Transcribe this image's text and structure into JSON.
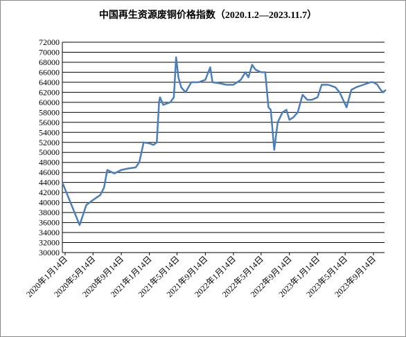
{
  "chart_data": {
    "type": "line",
    "title": "中国再生资源废铜价格指数（2020.1.2—2023.11.7）",
    "x": [
      "2020-01-02",
      "2020-03-17",
      "2020-04-15",
      "2020-05-14",
      "2020-06-15",
      "2020-07-01",
      "2020-07-15",
      "2020-08-15",
      "2020-09-14",
      "2020-10-15",
      "2020-11-15",
      "2020-12-01",
      "2020-12-20",
      "2021-01-14",
      "2021-02-01",
      "2021-02-15",
      "2021-02-25",
      "2021-03-01",
      "2021-03-15",
      "2021-04-14",
      "2021-04-30",
      "2021-05-10",
      "2021-05-20",
      "2021-06-01",
      "2021-06-20",
      "2021-07-15",
      "2021-08-15",
      "2021-09-14",
      "2021-10-05",
      "2021-10-15",
      "2021-11-15",
      "2021-12-15",
      "2022-01-14",
      "2022-02-15",
      "2022-03-07",
      "2022-03-20",
      "2022-04-05",
      "2022-04-20",
      "2022-05-14",
      "2022-06-01",
      "2022-06-15",
      "2022-06-25",
      "2022-07-10",
      "2022-07-25",
      "2022-08-15",
      "2022-09-01",
      "2022-09-14",
      "2022-10-01",
      "2022-10-20",
      "2022-11-10",
      "2022-12-01",
      "2022-12-20",
      "2023-01-14",
      "2023-02-01",
      "2023-03-01",
      "2023-04-01",
      "2023-04-20",
      "2023-05-20",
      "2023-06-10",
      "2023-07-01",
      "2023-08-01",
      "2023-09-01",
      "2023-09-14",
      "2023-10-01",
      "2023-10-15",
      "2023-10-25",
      "2023-11-07"
    ],
    "series": [
      {
        "name": "废铜价格指数",
        "color": "#4a7ebb",
        "values": [
          44000,
          35500,
          39500,
          40500,
          41500,
          43000,
          46500,
          45800,
          46500,
          46800,
          47000,
          48000,
          52000,
          51800,
          51500,
          52000,
          60000,
          61000,
          59500,
          60000,
          61000,
          69000,
          65000,
          63000,
          62000,
          64000,
          64000,
          64500,
          67000,
          64000,
          63800,
          63500,
          63500,
          64500,
          66000,
          65000,
          67500,
          66500,
          66000,
          66000,
          59000,
          58500,
          50500,
          56000,
          58000,
          58500,
          56500,
          57000,
          58000,
          61500,
          60500,
          60500,
          61000,
          63500,
          63500,
          63000,
          62000,
          59000,
          62500,
          63000,
          63500,
          64000,
          64000,
          63500,
          62500,
          62000,
          62500
        ]
      }
    ],
    "xticks": [
      {
        "value": "2020-01-14",
        "label": "2020年1月14日"
      },
      {
        "value": "2020-05-14",
        "label": "2020年5月14日"
      },
      {
        "value": "2020-09-14",
        "label": "2020年9月14日"
      },
      {
        "value": "2021-01-14",
        "label": "2021年1月14日"
      },
      {
        "value": "2021-05-14",
        "label": "2021年5月14日"
      },
      {
        "value": "2021-09-14",
        "label": "2021年9月14日"
      },
      {
        "value": "2022-01-14",
        "label": "2022年1月14日"
      },
      {
        "value": "2022-05-14",
        "label": "2022年5月14日"
      },
      {
        "value": "2022-09-14",
        "label": "2022年9月14日"
      },
      {
        "value": "2023-01-14",
        "label": "2023年1月14日"
      },
      {
        "value": "2023-05-14",
        "label": "2023年5月14日"
      },
      {
        "value": "2023-09-14",
        "label": "2023年9月14日"
      }
    ],
    "xlim": [
      "2020-01-02",
      "2023-11-07"
    ],
    "ylim": [
      30000,
      72000
    ],
    "yticks": [
      30000,
      32000,
      34000,
      36000,
      38000,
      40000,
      42000,
      44000,
      46000,
      48000,
      50000,
      52000,
      54000,
      56000,
      58000,
      60000,
      62000,
      64000,
      66000,
      68000,
      70000,
      72000
    ],
    "grid": true
  }
}
